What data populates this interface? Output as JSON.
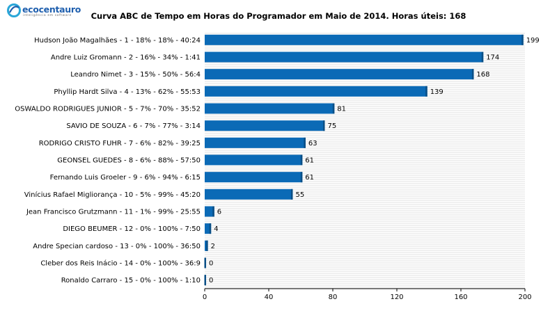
{
  "logo": {
    "brand": "ecocentauro",
    "tagline": "inteligência em software"
  },
  "chart_data": {
    "type": "bar",
    "orientation": "horizontal",
    "title": "Curva ABC de Tempo em Horas do Programador em Maio de 2014. Horas úteis: 168",
    "categories": [
      "Hudson João Magalhães  -  1  -  18%  -  18%  -  40:24",
      "Andre Luiz Gromann  -  2  -  16%  -  34%  -  1:41",
      "Leandro Nimet  -  3  -  15%  -  50%  -  56:4",
      "Phyllip Hardt Silva  -  4  -  13%  -  62%  -  55:53",
      "OSWALDO RODRIGUES JUNIOR  -  5  -  7%  -  70%  -  35:52",
      "SAVIO DE SOUZA  -  6  -  7%  -  77%  -  3:14",
      "RODRIGO CRISTO FUHR  -  7  -  6%  -  82%  -  39:25",
      "GEONSEL GUEDES  -  8  -  6%  -  88%  -  57:50",
      "Fernando Luis Groeler  -  9  -  6%  -  94%  -  6:15",
      "Vinícius Rafael Migliorança  -  10  -  5%  -  99%  -  45:20",
      "Jean Francisco Grutzmann  -  11  -  1%  -  99%  -  25:55",
      "DIEGO BEUMER  -  12  -  0%  -  100%  -  7:50",
      "Andre Specian cardoso  -  13  -  0%  -  100%  -  36:50",
      "Cleber dos Reis Inácio  -  14  -  0%  -  100%  -  36:9",
      "Ronaldo Carraro  -  15  -  0%  -  100%  -  1:10"
    ],
    "values": [
      199,
      174,
      168,
      139,
      81,
      75,
      63,
      61,
      61,
      55,
      6,
      4,
      2,
      0,
      0
    ],
    "xticks": [
      0,
      40,
      80,
      120,
      160,
      200
    ],
    "xlim": [
      0,
      200
    ],
    "grid": true,
    "colors": {
      "bar": "#0b6ab6",
      "bar_edge": "#0a4f86",
      "grid": "#d9d9d9"
    }
  }
}
